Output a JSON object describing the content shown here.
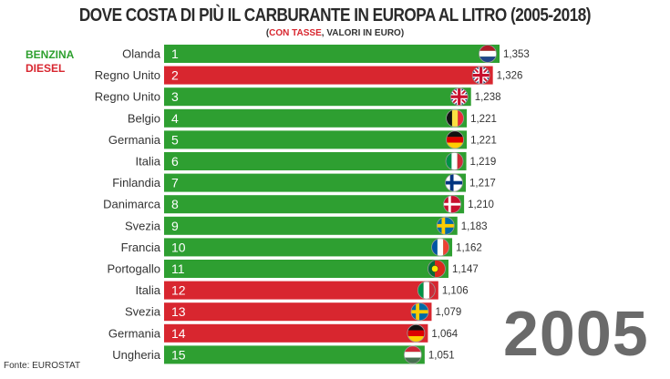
{
  "header": {
    "title": "DOVE COSTA DI PIÙ IL CARBURANTE IN EUROPA AL LITRO (2005-2018)",
    "subtitle_open": "(",
    "subtitle_red": "CON TASSE",
    "subtitle_rest": ", VALORI IN EURO)"
  },
  "legend": {
    "benzina": "BENZINA",
    "diesel": "DIESEL"
  },
  "year": "2005",
  "source": "Fonte: EUROSTAT",
  "colors": {
    "benzina": "#2e9f31",
    "diesel": "#d8262f"
  },
  "chart_data": {
    "type": "bar",
    "orientation": "horizontal",
    "xlim": [
      0,
      1.353
    ],
    "categories": [
      "Olanda",
      "Regno Unito",
      "Regno Unito",
      "Belgio",
      "Germania",
      "Italia",
      "Finlandia",
      "Danimarca",
      "Svezia",
      "Francia",
      "Portogallo",
      "Italia",
      "Svezia",
      "Germania",
      "Ungheria"
    ],
    "ranks": [
      "1",
      "2",
      "3",
      "4",
      "5",
      "6",
      "7",
      "8",
      "9",
      "10",
      "11",
      "12",
      "13",
      "14",
      "15"
    ],
    "values": [
      1.353,
      1.326,
      1.238,
      1.221,
      1.221,
      1.219,
      1.217,
      1.21,
      1.183,
      1.162,
      1.147,
      1.106,
      1.079,
      1.064,
      1.051
    ],
    "value_labels": [
      "1,353",
      "1,326",
      "1,238",
      "1,221",
      "1,221",
      "1,219",
      "1,217",
      "1,210",
      "1,183",
      "1,162",
      "1,147",
      "1,106",
      "1,079",
      "1,064",
      "1,051"
    ],
    "fuel": [
      "benzina",
      "diesel",
      "benzina",
      "benzina",
      "benzina",
      "benzina",
      "benzina",
      "benzina",
      "benzina",
      "benzina",
      "benzina",
      "diesel",
      "diesel",
      "diesel",
      "benzina"
    ],
    "flags": [
      "netherlands-flag-icon",
      "uk-flag-icon",
      "uk-flag-icon",
      "belgium-flag-icon",
      "germany-flag-icon",
      "italy-flag-icon",
      "finland-flag-icon",
      "denmark-flag-icon",
      "sweden-flag-icon",
      "france-flag-icon",
      "portugal-flag-icon",
      "italy-flag-icon",
      "sweden-flag-icon",
      "germany-flag-icon",
      "hungary-flag-icon"
    ]
  }
}
